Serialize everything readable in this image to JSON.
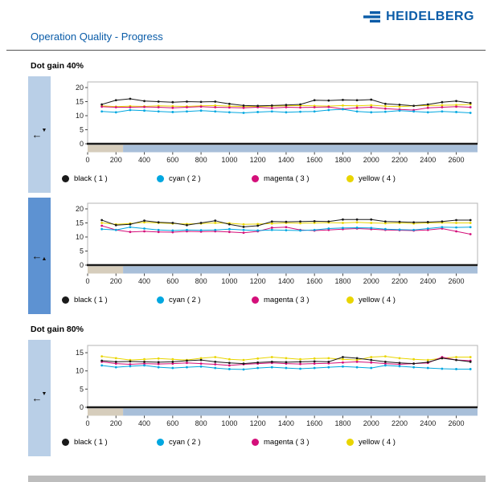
{
  "header": {
    "logo_text": "HEIDELBERG",
    "title": "Operation Quality - Progress",
    "brand_color": "#0a5ca8"
  },
  "sections": {
    "s40": "Dot gain 40%",
    "s80": "Dot gain 80%"
  },
  "legend": {
    "items": [
      {
        "label": "black ( 1 )",
        "color": "#1a1a1a"
      },
      {
        "label": "cyan ( 2 )",
        "color": "#00a7e0"
      },
      {
        "label": "magenta ( 3 )",
        "color": "#d40f7a"
      },
      {
        "label": "yellow ( 4 )",
        "color": "#e9d500"
      }
    ]
  },
  "chart_data": [
    {
      "type": "line",
      "section": "Dot gain 40%",
      "xlabel": "",
      "ylabel": "",
      "xmax": 2750,
      "ymax": 22,
      "yticks": [
        0,
        5,
        10,
        15,
        20
      ],
      "xticks": [
        0,
        200,
        400,
        600,
        800,
        1000,
        1200,
        1400,
        1600,
        1800,
        2000,
        2200,
        2400,
        2600
      ],
      "band": {
        "split": 250,
        "left_color": "#d6cdbc",
        "right_color": "#a8bfd9"
      },
      "x": [
        100,
        200,
        300,
        400,
        500,
        600,
        700,
        800,
        900,
        1000,
        1100,
        1200,
        1300,
        1400,
        1500,
        1600,
        1700,
        1800,
        1900,
        2000,
        2100,
        2200,
        2300,
        2400,
        2500,
        2600,
        2700
      ],
      "series": [
        {
          "name": "black",
          "color": "#1a1a1a",
          "values": [
            14,
            15.5,
            16,
            15.2,
            15,
            14.8,
            15,
            14.9,
            15,
            14.2,
            13.6,
            13.5,
            13.6,
            13.8,
            14,
            15.5,
            15.4,
            15.6,
            15.5,
            15.7,
            14.2,
            13.9,
            13.5,
            14,
            14.8,
            15.2,
            14.5
          ]
        },
        {
          "name": "cyan",
          "color": "#00a7e0",
          "values": [
            11.5,
            11.2,
            12,
            11.8,
            11.5,
            11.3,
            11.5,
            11.8,
            11.5,
            11.2,
            11,
            11.3,
            11.5,
            11.2,
            11.4,
            11.5,
            12,
            12.3,
            11.5,
            11.2,
            11.4,
            11.8,
            11.5,
            11.2,
            11.5,
            11.3,
            11
          ]
        },
        {
          "name": "magenta",
          "color": "#d40f7a",
          "values": [
            13.2,
            13,
            13,
            13.1,
            13,
            12.8,
            13,
            13.2,
            13,
            12.9,
            12.8,
            13,
            12.7,
            13,
            12.9,
            13,
            13.1,
            12.4,
            12.8,
            13,
            12.5,
            12.2,
            12,
            12.8,
            13,
            13.2,
            13
          ]
        },
        {
          "name": "yellow",
          "color": "#e9d500",
          "values": [
            13.5,
            13.2,
            13.4,
            13.3,
            13.5,
            13.4,
            13.3,
            13.5,
            13.6,
            13.4,
            13.2,
            13.3,
            13.4,
            13.5,
            13.6,
            13.5,
            13.4,
            13.6,
            13.5,
            13.7,
            13.4,
            13.2,
            13.5,
            13.6,
            13.7,
            13.8,
            14
          ]
        }
      ]
    },
    {
      "type": "line",
      "section": "Dot gain 40%",
      "xlabel": "",
      "ylabel": "",
      "xmax": 2750,
      "ymax": 22,
      "yticks": [
        0,
        5,
        10,
        15,
        20
      ],
      "xticks": [
        0,
        200,
        400,
        600,
        800,
        1000,
        1200,
        1400,
        1600,
        1800,
        2000,
        2200,
        2400,
        2600
      ],
      "band": {
        "split": 250,
        "left_color": "#d6cdbc",
        "right_color": "#a8bfd9"
      },
      "x": [
        100,
        200,
        300,
        400,
        500,
        600,
        700,
        800,
        900,
        1000,
        1100,
        1200,
        1300,
        1400,
        1500,
        1600,
        1700,
        1800,
        1900,
        2000,
        2100,
        2200,
        2300,
        2400,
        2500,
        2600,
        2700
      ],
      "series": [
        {
          "name": "black",
          "color": "#1a1a1a",
          "values": [
            16,
            14.2,
            14.5,
            15.8,
            15.2,
            15,
            14.2,
            15,
            15.8,
            14.5,
            13.6,
            14,
            15.5,
            15.4,
            15.5,
            15.6,
            15.5,
            16.2,
            16.2,
            16.2,
            15.5,
            15.4,
            15.2,
            15.3,
            15.5,
            16,
            16
          ]
        },
        {
          "name": "cyan",
          "color": "#00a7e0",
          "values": [
            12.8,
            12.5,
            13.5,
            13,
            12.5,
            12.3,
            12.5,
            12.4,
            12.5,
            12.8,
            12.5,
            12.3,
            12.5,
            12.4,
            12.3,
            12.5,
            13,
            13.2,
            13.3,
            13.2,
            12.8,
            12.6,
            12.5,
            13,
            13.5,
            13.4,
            13.5
          ]
        },
        {
          "name": "magenta",
          "color": "#d40f7a",
          "values": [
            14,
            12.5,
            11.8,
            12,
            11.8,
            11.7,
            12,
            11.9,
            12,
            11.8,
            11.5,
            12,
            13.3,
            13.5,
            12.5,
            12.3,
            12.5,
            12.8,
            13,
            12.8,
            12.5,
            12.4,
            12.3,
            12.5,
            13,
            12,
            11
          ]
        },
        {
          "name": "yellow",
          "color": "#e9d500",
          "values": [
            15,
            14.5,
            14.8,
            15.2,
            15,
            14.8,
            14.6,
            14.8,
            15,
            14.9,
            14.5,
            14.6,
            14.8,
            15,
            14.9,
            15,
            15.1,
            15,
            15.2,
            15,
            14.9,
            15,
            14.8,
            15,
            15.1,
            15,
            15
          ]
        }
      ]
    },
    {
      "type": "line",
      "section": "Dot gain 80%",
      "xlabel": "",
      "ylabel": "",
      "xmax": 2750,
      "ymax": 17,
      "yticks": [
        0,
        5,
        10,
        15
      ],
      "xticks": [
        0,
        200,
        400,
        600,
        800,
        1000,
        1200,
        1400,
        1600,
        1800,
        2000,
        2200,
        2400,
        2600
      ],
      "band": {
        "split": 250,
        "left_color": "#d6cdbc",
        "right_color": "#a8bfd9"
      },
      "x": [
        100,
        200,
        300,
        400,
        500,
        600,
        700,
        800,
        900,
        1000,
        1100,
        1200,
        1300,
        1400,
        1500,
        1600,
        1700,
        1800,
        1900,
        2000,
        2100,
        2200,
        2300,
        2400,
        2500,
        2600,
        2700
      ],
      "series": [
        {
          "name": "black",
          "color": "#1a1a1a",
          "values": [
            12.8,
            12.5,
            12.6,
            12.5,
            12.4,
            12.5,
            12.8,
            13,
            12.5,
            12.2,
            12,
            12.3,
            12.5,
            12.4,
            12.5,
            12.6,
            12.5,
            13.8,
            13.5,
            13,
            12.5,
            12.2,
            12,
            12.4,
            13.5,
            13,
            12.5
          ]
        },
        {
          "name": "cyan",
          "color": "#00a7e0",
          "values": [
            11.5,
            11,
            11.3,
            11.5,
            11,
            10.8,
            11,
            11.2,
            10.8,
            10.5,
            10.4,
            10.8,
            11,
            10.8,
            10.6,
            10.8,
            11,
            11.2,
            11,
            10.8,
            11.5,
            11.3,
            11,
            10.8,
            10.6,
            10.5,
            10.5
          ]
        },
        {
          "name": "magenta",
          "color": "#d40f7a",
          "values": [
            12.5,
            12,
            11.8,
            12,
            11.9,
            12,
            12.2,
            12,
            11.8,
            11.5,
            11.8,
            12,
            12.2,
            12,
            11.9,
            12,
            12.1,
            12.3,
            12.5,
            12.3,
            12,
            11.8,
            12,
            12.2,
            13.8,
            13,
            12.8
          ]
        },
        {
          "name": "yellow",
          "color": "#e9d500",
          "values": [
            14,
            13.5,
            13,
            13.2,
            13.4,
            13.2,
            13,
            13.5,
            13.8,
            13.2,
            13,
            13.4,
            13.8,
            13.5,
            13.2,
            13.4,
            13.5,
            13.2,
            13,
            13.8,
            14,
            13.5,
            13.2,
            13,
            13.5,
            13.8,
            13.8
          ]
        }
      ]
    }
  ]
}
